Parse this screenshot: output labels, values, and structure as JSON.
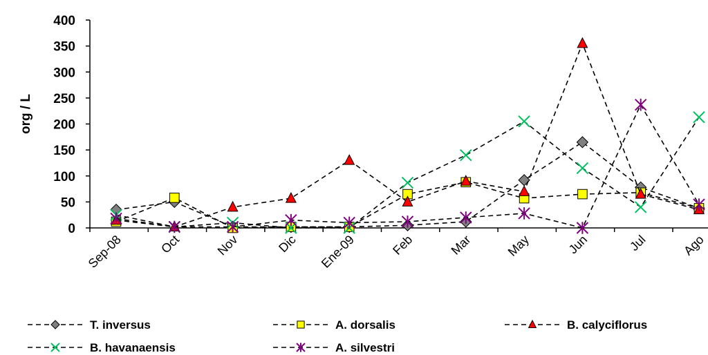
{
  "chart_data": {
    "type": "line",
    "title": "",
    "xlabel": "",
    "ylabel": "org / L",
    "ylim": [
      0,
      400
    ],
    "yticks": [
      0,
      50,
      100,
      150,
      200,
      250,
      300,
      350,
      400
    ],
    "grid": false,
    "legend_position": "bottom",
    "categories": [
      "Sep-08",
      "Oct",
      "Nov",
      "Dic",
      "Ene-09",
      "Feb",
      "Mar",
      "May",
      "Jun",
      "Jul",
      "Ago"
    ],
    "series": [
      {
        "name": "T. inversus",
        "marker": "diamond",
        "color": "#808080",
        "values": [
          35,
          50,
          2,
          2,
          2,
          5,
          12,
          92,
          165,
          78,
          38
        ]
      },
      {
        "name": "A. dorsalis",
        "marker": "square",
        "color": "#ffff00",
        "values": [
          12,
          58,
          0,
          2,
          2,
          65,
          88,
          57,
          65,
          68,
          38
        ]
      },
      {
        "name": "B. calyciflorus",
        "marker": "triangle",
        "color": "#ff0000",
        "values": [
          15,
          2,
          40,
          57,
          130,
          50,
          90,
          70,
          355,
          65,
          35
        ]
      },
      {
        "name": "B. havanaensis",
        "marker": "x",
        "color": "#00c060",
        "values": [
          25,
          2,
          10,
          0,
          0,
          87,
          140,
          205,
          115,
          40,
          213
        ]
      },
      {
        "name": "A. silvestri",
        "marker": "star",
        "color": "#800080",
        "values": [
          18,
          2,
          2,
          15,
          10,
          12,
          20,
          28,
          0,
          237,
          45
        ]
      }
    ]
  }
}
